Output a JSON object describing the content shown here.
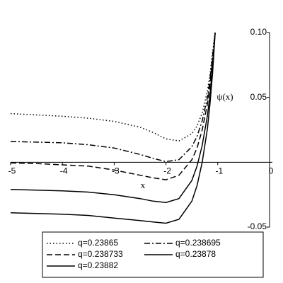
{
  "chart_data": {
    "type": "line",
    "xlabel": "x",
    "ylabel": "ψ(x)",
    "xlim": [
      -5,
      0
    ],
    "ylim": [
      -0.05,
      0.1
    ],
    "xticks": [
      -5,
      -4,
      -3,
      -2,
      -1,
      0
    ],
    "yticks": [
      -0.05,
      0.05,
      {
        "value": 0.1,
        "label": "0.10"
      }
    ],
    "x": [
      -5,
      -4.5,
      -4,
      -3.5,
      -3,
      -2.5,
      -2.25,
      -2,
      -1.75,
      -1.5,
      -1.4,
      -1.3,
      -1.2,
      -1.15,
      -1.1,
      -1.05
    ],
    "legend": "bottom",
    "series": [
      {
        "name": "q=0.23865",
        "color": "#000000",
        "dash": "dotted",
        "values": [
          0.0375,
          0.0365,
          0.0355,
          0.034,
          0.0315,
          0.027,
          0.023,
          0.018,
          0.0165,
          0.022,
          0.028,
          0.038,
          0.055,
          0.068,
          0.085,
          0.1
        ]
      },
      {
        "name": "q=0.238695",
        "color": "#000000",
        "dash": "dashdot",
        "values": [
          0.016,
          0.0155,
          0.015,
          0.0135,
          0.011,
          0.006,
          0.003,
          0.0005,
          0.002,
          0.012,
          0.02,
          0.032,
          0.05,
          0.064,
          0.082,
          0.1
        ]
      },
      {
        "name": "q=0.238733",
        "color": "#000000",
        "dash": "dashed",
        "values": [
          -0.0005,
          -0.001,
          -0.002,
          -0.003,
          -0.006,
          -0.01,
          -0.012,
          -0.0135,
          -0.01,
          0.002,
          0.011,
          0.025,
          0.045,
          0.06,
          0.079,
          0.1
        ]
      },
      {
        "name": "q=0.23878",
        "color": "#000000",
        "dash": "solid",
        "values": [
          -0.021,
          -0.0215,
          -0.022,
          -0.023,
          -0.025,
          -0.028,
          -0.03,
          -0.031,
          -0.028,
          -0.014,
          -0.003,
          0.013,
          0.036,
          0.052,
          0.074,
          0.1
        ]
      },
      {
        "name": "q=0.23882",
        "color": "#000000",
        "dash": "solid",
        "values": [
          -0.039,
          -0.0395,
          -0.04,
          -0.041,
          -0.043,
          -0.045,
          -0.046,
          -0.047,
          -0.044,
          -0.03,
          -0.018,
          0,
          0.026,
          0.045,
          0.069,
          0.1
        ]
      }
    ]
  }
}
